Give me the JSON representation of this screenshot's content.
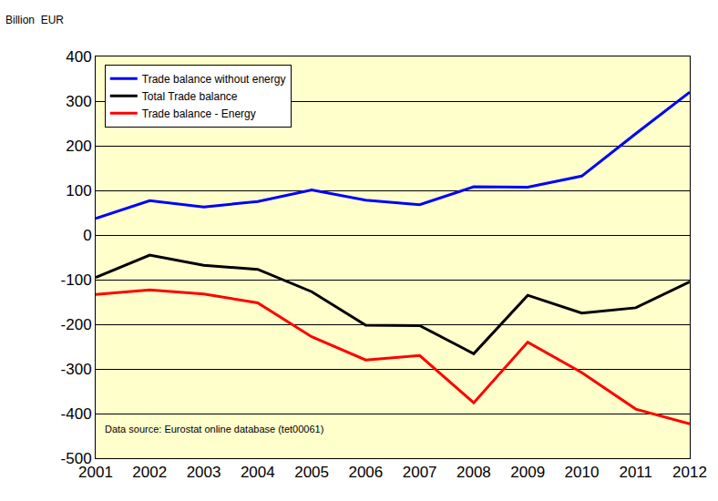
{
  "chart_data": {
    "type": "line",
    "y_label": "Billion  EUR",
    "annotations": [
      "Data source: Eurostat online database (tet00061)"
    ],
    "categories": [
      "2001",
      "2002",
      "2003",
      "2004",
      "2005",
      "2006",
      "2007",
      "2008",
      "2009",
      "2010",
      "2011",
      "2012"
    ],
    "series": [
      {
        "name": "Trade balance without energy",
        "color": "#0000ff",
        "values": [
          37,
          77,
          63,
          75,
          101,
          78,
          68,
          108,
          107,
          132,
          227,
          320
        ]
      },
      {
        "name": "Total Trade balance",
        "color": "#000000",
        "values": [
          -95,
          -45,
          -68,
          -77,
          -127,
          -202,
          -203,
          -266,
          -135,
          -175,
          -163,
          -105
        ]
      },
      {
        "name": "Trade balance - Energy",
        "color": "#ff0000",
        "values": [
          -133,
          -123,
          -132,
          -152,
          -228,
          -280,
          -270,
          -376,
          -240,
          -308,
          -390,
          -423
        ]
      }
    ],
    "ylim": [
      -500,
      400
    ],
    "yticks": [
      -500,
      -400,
      -300,
      -200,
      -100,
      0,
      100,
      200,
      300,
      400
    ],
    "grid": true,
    "legend": "top left"
  }
}
